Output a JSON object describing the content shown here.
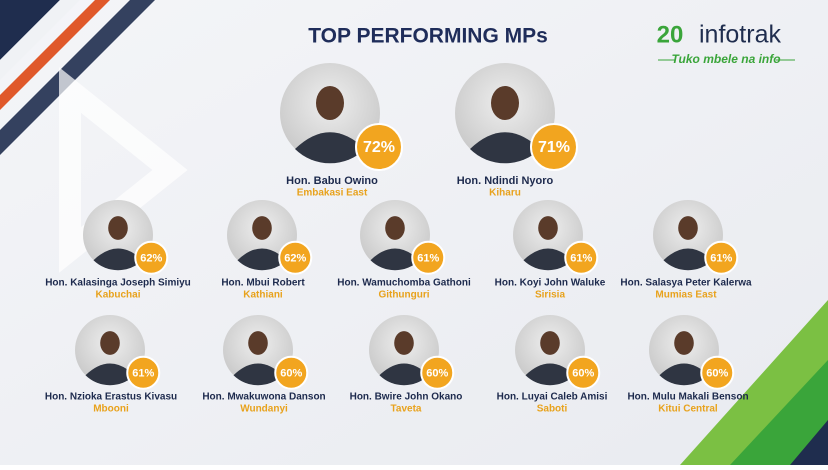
{
  "header": {
    "title": "TOP PERFORMING MPs"
  },
  "logo": {
    "number": "20",
    "brand": "infotrak",
    "tagline": "Tuko mbele na info"
  },
  "mps": [
    {
      "name": "Hon. Babu Owino",
      "constituency": "Embakasi East",
      "score": "72%"
    },
    {
      "name": "Hon. Ndindi Nyoro",
      "constituency": "Kiharu",
      "score": "71%"
    },
    {
      "name": "Hon. Kalasinga Joseph Simiyu",
      "constituency": "Kabuchai",
      "score": "62%"
    },
    {
      "name": "Hon. Mbui Robert",
      "constituency": "Kathiani",
      "score": "62%"
    },
    {
      "name": "Hon. Wamuchomba Gathoni",
      "constituency": "Githunguri",
      "score": "61%"
    },
    {
      "name": "Hon. Koyi John Waluke",
      "constituency": "Sirisia",
      "score": "61%"
    },
    {
      "name": "Hon. Salasya Peter Kalerwa",
      "constituency": "Mumias East",
      "score": "61%"
    },
    {
      "name": "Hon. Nzioka Erastus Kivasu",
      "constituency": "Mbooni",
      "score": "61%"
    },
    {
      "name": "Hon. Mwakuwona Danson",
      "constituency": "Wundanyi",
      "score": "60%"
    },
    {
      "name": "Hon. Bwire John Okano",
      "constituency": "Taveta",
      "score": "60%"
    },
    {
      "name": "Hon. Luyai Caleb Amisi",
      "constituency": "Saboti",
      "score": "60%"
    },
    {
      "name": "Hon. Mulu Makali Benson",
      "constituency": "Kitui Central",
      "score": "60%"
    }
  ]
}
